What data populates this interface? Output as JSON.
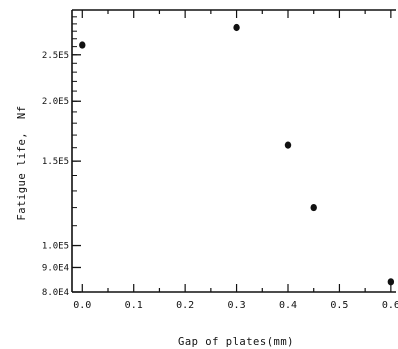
{
  "chart_data": {
    "type": "scatter",
    "title": "",
    "xlabel": "Gap of plates(mm)",
    "ylabel": "Fatigue life, Nf",
    "ylabel_text": "Fatigue life,",
    "ylabel_symbol": "Nf",
    "y_scale": "log",
    "x_ticks": [
      "0.0",
      "0.1",
      "0.2",
      "0.3",
      "0.4",
      "0.5",
      "0.6"
    ],
    "x_tick_values": [
      0.0,
      0.1,
      0.2,
      0.3,
      0.4,
      0.5,
      0.6
    ],
    "y_ticks": [
      "2.5E5",
      "2.0E5",
      "1.5E5",
      "1.0E5",
      "9.0E4",
      "8.0E4"
    ],
    "y_tick_values": [
      250000,
      200000,
      150000,
      100000,
      90000,
      80000
    ],
    "xlim": [
      -0.02,
      0.61
    ],
    "ylim": [
      80000,
      310000
    ],
    "grid": false,
    "legend": "none",
    "series": [
      {
        "x": [
          0.0,
          0.3,
          0.4,
          0.45,
          0.6
        ],
        "y": [
          262000,
          285000,
          162000,
          120000,
          84000
        ]
      }
    ],
    "marker_color": "#111111"
  }
}
